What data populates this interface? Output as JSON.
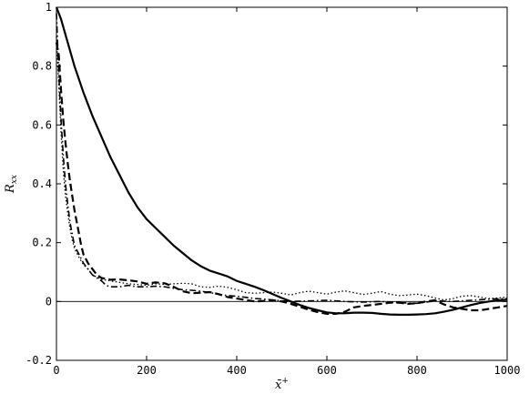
{
  "chart_data": {
    "type": "line",
    "xlabel": "x̄",
    "xlabel_sup": "+",
    "ylabel": "R",
    "ylabel_sub": "xx",
    "xlim": [
      0,
      1000
    ],
    "ylim": [
      -0.2,
      1.0
    ],
    "x_ticks": [
      0,
      200,
      400,
      600,
      800,
      1000
    ],
    "x_tick_labels": [
      "0",
      "200",
      "400",
      "600",
      "800",
      "1000"
    ],
    "y_ticks": [
      -0.2,
      0,
      0.2,
      0.4,
      0.6,
      0.8,
      1.0
    ],
    "y_tick_labels": [
      "-0.2",
      "0",
      "0.2",
      "0.4",
      "0.6",
      "0.8",
      "1"
    ],
    "reference_line_y": 0,
    "grid": false,
    "legend": "none",
    "series": [
      {
        "style": "solid",
        "color": "#000000",
        "width": 2.2,
        "points": [
          [
            0,
            1.0
          ],
          [
            10,
            0.96
          ],
          [
            25,
            0.88
          ],
          [
            40,
            0.8
          ],
          [
            60,
            0.71
          ],
          [
            80,
            0.63
          ],
          [
            100,
            0.56
          ],
          [
            120,
            0.49
          ],
          [
            140,
            0.43
          ],
          [
            160,
            0.37
          ],
          [
            180,
            0.32
          ],
          [
            200,
            0.28
          ],
          [
            220,
            0.25
          ],
          [
            240,
            0.22
          ],
          [
            260,
            0.19
          ],
          [
            280,
            0.165
          ],
          [
            300,
            0.14
          ],
          [
            320,
            0.12
          ],
          [
            340,
            0.105
          ],
          [
            360,
            0.095
          ],
          [
            380,
            0.085
          ],
          [
            400,
            0.07
          ],
          [
            420,
            0.06
          ],
          [
            440,
            0.05
          ],
          [
            460,
            0.038
          ],
          [
            480,
            0.025
          ],
          [
            500,
            0.012
          ],
          [
            520,
            0.0
          ],
          [
            540,
            -0.012
          ],
          [
            560,
            -0.022
          ],
          [
            580,
            -0.03
          ],
          [
            600,
            -0.037
          ],
          [
            620,
            -0.04
          ],
          [
            640,
            -0.04
          ],
          [
            660,
            -0.038
          ],
          [
            680,
            -0.038
          ],
          [
            700,
            -0.039
          ],
          [
            720,
            -0.042
          ],
          [
            740,
            -0.044
          ],
          [
            760,
            -0.045
          ],
          [
            780,
            -0.045
          ],
          [
            800,
            -0.044
          ],
          [
            820,
            -0.043
          ],
          [
            840,
            -0.04
          ],
          [
            860,
            -0.035
          ],
          [
            880,
            -0.028
          ],
          [
            900,
            -0.02
          ],
          [
            920,
            -0.012
          ],
          [
            940,
            -0.005
          ],
          [
            960,
            0.0
          ],
          [
            980,
            0.004
          ],
          [
            1000,
            0.006
          ]
        ]
      },
      {
        "style": "dashed",
        "color": "#000000",
        "width": 2.2,
        "points": [
          [
            0,
            0.88
          ],
          [
            5,
            0.84
          ],
          [
            10,
            0.72
          ],
          [
            15,
            0.62
          ],
          [
            20,
            0.54
          ],
          [
            25,
            0.47
          ],
          [
            30,
            0.41
          ],
          [
            35,
            0.36
          ],
          [
            40,
            0.31
          ],
          [
            45,
            0.27
          ],
          [
            50,
            0.23
          ],
          [
            55,
            0.19
          ],
          [
            60,
            0.16
          ],
          [
            70,
            0.13
          ],
          [
            80,
            0.11
          ],
          [
            90,
            0.09
          ],
          [
            100,
            0.08
          ],
          [
            120,
            0.074
          ],
          [
            140,
            0.075
          ],
          [
            160,
            0.072
          ],
          [
            180,
            0.068
          ],
          [
            200,
            0.06
          ],
          [
            220,
            0.065
          ],
          [
            240,
            0.062
          ],
          [
            260,
            0.05
          ],
          [
            280,
            0.035
          ],
          [
            300,
            0.028
          ],
          [
            320,
            0.03
          ],
          [
            340,
            0.032
          ],
          [
            360,
            0.025
          ],
          [
            380,
            0.015
          ],
          [
            400,
            0.01
          ],
          [
            420,
            0.005
          ],
          [
            440,
            0.0
          ],
          [
            460,
            0.002
          ],
          [
            480,
            0.004
          ],
          [
            500,
            0.0
          ],
          [
            520,
            -0.008
          ],
          [
            540,
            -0.018
          ],
          [
            560,
            -0.028
          ],
          [
            580,
            -0.036
          ],
          [
            600,
            -0.042
          ],
          [
            620,
            -0.042
          ],
          [
            640,
            -0.035
          ],
          [
            660,
            -0.02
          ],
          [
            680,
            -0.015
          ],
          [
            700,
            -0.012
          ],
          [
            720,
            -0.008
          ],
          [
            740,
            -0.004
          ],
          [
            760,
            -0.004
          ],
          [
            780,
            -0.008
          ],
          [
            800,
            -0.006
          ],
          [
            820,
            0.0
          ],
          [
            840,
            0.004
          ],
          [
            860,
            -0.01
          ],
          [
            880,
            -0.02
          ],
          [
            900,
            -0.025
          ],
          [
            920,
            -0.03
          ],
          [
            940,
            -0.03
          ],
          [
            960,
            -0.025
          ],
          [
            980,
            -0.02
          ],
          [
            1000,
            -0.015
          ]
        ]
      },
      {
        "style": "dashdot",
        "color": "#000000",
        "width": 1.6,
        "points": [
          [
            0,
            0.98
          ],
          [
            5,
            0.78
          ],
          [
            10,
            0.62
          ],
          [
            15,
            0.5
          ],
          [
            20,
            0.4
          ],
          [
            25,
            0.33
          ],
          [
            30,
            0.27
          ],
          [
            35,
            0.23
          ],
          [
            40,
            0.19
          ],
          [
            50,
            0.16
          ],
          [
            60,
            0.13
          ],
          [
            70,
            0.11
          ],
          [
            80,
            0.09
          ],
          [
            90,
            0.08
          ],
          [
            100,
            0.07
          ],
          [
            110,
            0.055
          ],
          [
            120,
            0.05
          ],
          [
            140,
            0.05
          ],
          [
            160,
            0.055
          ],
          [
            180,
            0.05
          ],
          [
            200,
            0.05
          ],
          [
            220,
            0.052
          ],
          [
            240,
            0.05
          ],
          [
            260,
            0.045
          ],
          [
            280,
            0.04
          ],
          [
            300,
            0.038
          ],
          [
            320,
            0.035
          ],
          [
            340,
            0.03
          ],
          [
            360,
            0.025
          ],
          [
            380,
            0.02
          ],
          [
            400,
            0.018
          ],
          [
            420,
            0.014
          ],
          [
            440,
            0.01
          ],
          [
            460,
            0.008
          ],
          [
            480,
            0.005
          ],
          [
            500,
            0.002
          ],
          [
            520,
            0.0
          ],
          [
            560,
            0.002
          ],
          [
            600,
            0.004
          ],
          [
            640,
            0.0
          ],
          [
            680,
            -0.002
          ],
          [
            720,
            0.0
          ],
          [
            760,
            -0.004
          ],
          [
            800,
            -0.006
          ],
          [
            840,
            0.002
          ],
          [
            880,
            0.0
          ],
          [
            920,
            0.004
          ],
          [
            960,
            0.008
          ],
          [
            1000,
            0.01
          ]
        ]
      },
      {
        "style": "dotted",
        "color": "#000000",
        "width": 1.3,
        "points": [
          [
            0,
            0.9
          ],
          [
            5,
            0.74
          ],
          [
            10,
            0.58
          ],
          [
            15,
            0.45
          ],
          [
            20,
            0.36
          ],
          [
            25,
            0.3
          ],
          [
            30,
            0.25
          ],
          [
            35,
            0.21
          ],
          [
            40,
            0.18
          ],
          [
            50,
            0.15
          ],
          [
            60,
            0.125
          ],
          [
            70,
            0.11
          ],
          [
            80,
            0.09
          ],
          [
            100,
            0.075
          ],
          [
            120,
            0.07
          ],
          [
            140,
            0.065
          ],
          [
            160,
            0.06
          ],
          [
            180,
            0.058
          ],
          [
            200,
            0.055
          ],
          [
            220,
            0.06
          ],
          [
            240,
            0.058
          ],
          [
            260,
            0.06
          ],
          [
            280,
            0.062
          ],
          [
            300,
            0.06
          ],
          [
            320,
            0.05
          ],
          [
            340,
            0.048
          ],
          [
            360,
            0.052
          ],
          [
            380,
            0.048
          ],
          [
            400,
            0.04
          ],
          [
            420,
            0.03
          ],
          [
            440,
            0.028
          ],
          [
            460,
            0.03
          ],
          [
            480,
            0.032
          ],
          [
            500,
            0.028
          ],
          [
            520,
            0.022
          ],
          [
            540,
            0.03
          ],
          [
            560,
            0.035
          ],
          [
            580,
            0.03
          ],
          [
            600,
            0.025
          ],
          [
            620,
            0.032
          ],
          [
            640,
            0.036
          ],
          [
            660,
            0.03
          ],
          [
            680,
            0.024
          ],
          [
            700,
            0.028
          ],
          [
            720,
            0.034
          ],
          [
            740,
            0.025
          ],
          [
            760,
            0.02
          ],
          [
            780,
            0.022
          ],
          [
            800,
            0.025
          ],
          [
            820,
            0.02
          ],
          [
            840,
            0.012
          ],
          [
            860,
            0.005
          ],
          [
            880,
            0.01
          ],
          [
            900,
            0.018
          ],
          [
            920,
            0.02
          ],
          [
            940,
            0.015
          ],
          [
            960,
            0.01
          ],
          [
            980,
            0.012
          ],
          [
            1000,
            0.015
          ]
        ]
      }
    ]
  }
}
